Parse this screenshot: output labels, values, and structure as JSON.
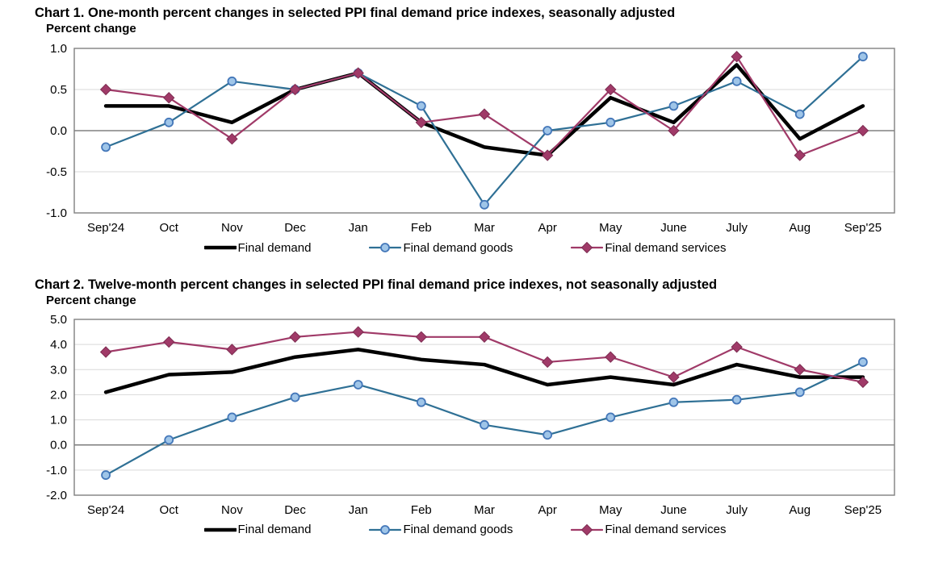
{
  "chart_data": [
    {
      "type": "line",
      "title": "Chart 1. One-month percent changes in selected PPI final demand price indexes, seasonally adjusted",
      "ylabel": "Percent change",
      "xlabel": "",
      "categories": [
        "Sep'24",
        "Oct",
        "Nov",
        "Dec",
        "Jan",
        "Feb",
        "Mar",
        "Apr",
        "May",
        "June",
        "July",
        "Aug",
        "Sep'25"
      ],
      "series": [
        {
          "name": "Final demand",
          "values": [
            0.3,
            0.3,
            0.1,
            0.5,
            0.7,
            0.1,
            -0.2,
            -0.3,
            0.4,
            0.1,
            0.8,
            -0.1,
            0.3
          ],
          "color": "#000000",
          "line_width": 4.5,
          "marker": "none",
          "marker_fill": "",
          "marker_stroke": ""
        },
        {
          "name": "Final demand goods",
          "values": [
            -0.2,
            0.1,
            0.6,
            0.5,
            0.7,
            0.3,
            -0.9,
            0.0,
            0.1,
            0.3,
            0.6,
            0.2,
            0.9
          ],
          "color": "#2F7095",
          "line_width": 2.2,
          "marker": "circle",
          "marker_fill": "#9FC5E8",
          "marker_stroke": "#4477B9"
        },
        {
          "name": "Final demand services",
          "values": [
            0.5,
            0.4,
            -0.1,
            0.5,
            0.7,
            0.1,
            0.2,
            -0.3,
            0.5,
            0.0,
            0.9,
            -0.3,
            0.0
          ],
          "color": "#A03A68",
          "line_width": 2.2,
          "marker": "diamond",
          "marker_fill": "#A03A68",
          "marker_stroke": "#7D2C51"
        }
      ],
      "ylim": [
        -1.0,
        1.0
      ],
      "yticks": [
        1.0,
        0.5,
        0.0,
        -0.5,
        -1.0
      ],
      "grid": true,
      "legend_position": "bottom"
    },
    {
      "type": "line",
      "title": "Chart 2. Twelve-month percent changes in selected PPI final demand price indexes, not seasonally adjusted",
      "ylabel": "Percent change",
      "xlabel": "",
      "categories": [
        "Sep'24",
        "Oct",
        "Nov",
        "Dec",
        "Jan",
        "Feb",
        "Mar",
        "Apr",
        "May",
        "June",
        "July",
        "Aug",
        "Sep'25"
      ],
      "series": [
        {
          "name": "Final demand",
          "values": [
            2.1,
            2.8,
            2.9,
            3.5,
            3.8,
            3.4,
            3.2,
            2.4,
            2.7,
            2.4,
            3.2,
            2.7,
            2.7
          ],
          "color": "#000000",
          "line_width": 4.5,
          "marker": "none",
          "marker_fill": "",
          "marker_stroke": ""
        },
        {
          "name": "Final demand goods",
          "values": [
            -1.2,
            0.2,
            1.1,
            1.9,
            2.4,
            1.7,
            0.8,
            0.4,
            1.1,
            1.7,
            1.8,
            2.1,
            3.3
          ],
          "color": "#2F7095",
          "line_width": 2.2,
          "marker": "circle",
          "marker_fill": "#9FC5E8",
          "marker_stroke": "#4477B9"
        },
        {
          "name": "Final demand services",
          "values": [
            3.7,
            4.1,
            3.8,
            4.3,
            4.5,
            4.3,
            4.3,
            3.3,
            3.5,
            2.7,
            3.9,
            3.0,
            2.5
          ],
          "color": "#A03A68",
          "line_width": 2.2,
          "marker": "diamond",
          "marker_fill": "#A03A68",
          "marker_stroke": "#7D2C51"
        }
      ],
      "ylim": [
        -2.0,
        5.0
      ],
      "yticks": [
        5.0,
        4.0,
        3.0,
        2.0,
        1.0,
        0.0,
        -1.0,
        -2.0
      ],
      "grid": true,
      "legend_position": "bottom"
    }
  ],
  "styles": {
    "background": "#ffffff",
    "text_color": "#000000",
    "gridline_color": "#d9d9d9",
    "zero_line_color": "#808080",
    "frame_color": "#808080"
  }
}
